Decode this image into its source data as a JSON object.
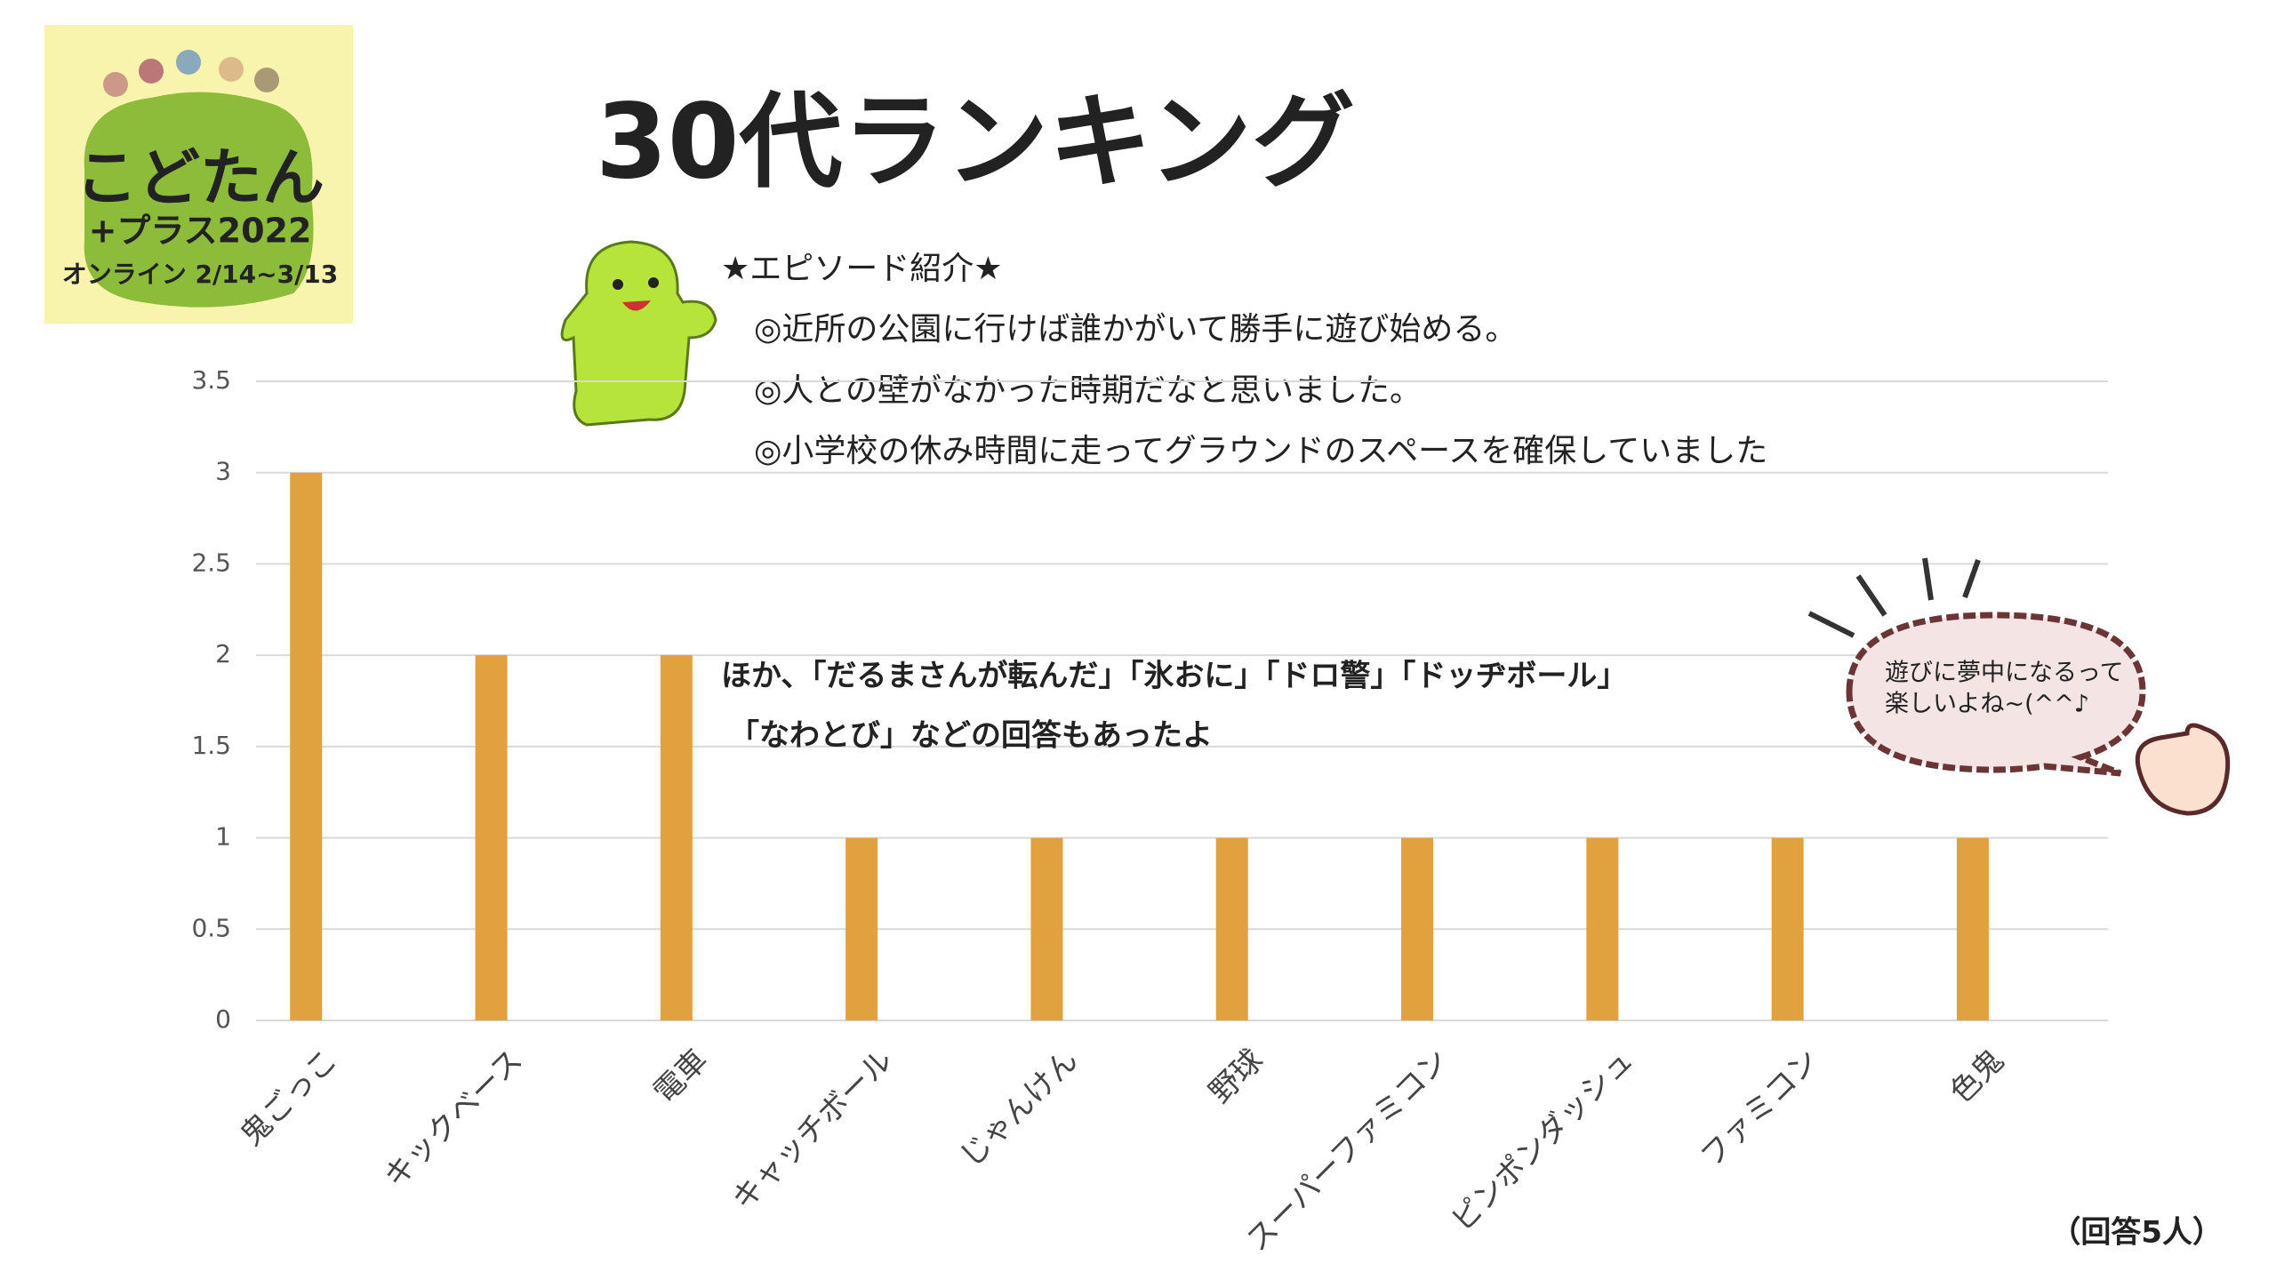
{
  "chart_data": {
    "type": "bar",
    "title": "30代ランキング",
    "categories": [
      "鬼ごっこ",
      "キックベース",
      "電車",
      "キャッチボール",
      "じゃんけん",
      "野球",
      "スーパーファミコン",
      "ピンポンダッシュ",
      "ファミコン",
      "色鬼"
    ],
    "values": [
      3,
      2,
      2,
      1,
      1,
      1,
      1,
      1,
      1,
      1
    ],
    "color": "#e0a13e",
    "ylim": [
      0,
      3.5
    ],
    "yticks": [
      0,
      0.5,
      1,
      1.5,
      2,
      2.5,
      3,
      3.5
    ],
    "grid": true,
    "episode_heading": "★エピソード紹介★",
    "episodes": [
      "◎近所の公園に行けば誰かがいて勝手に遊び始める。",
      "◎人との壁がなかった時期だなと思いました。",
      "◎小学校の休み時間に走ってグラウンドのスペースを確保していました"
    ],
    "comment": [
      "ほか、「だるまさんが転んだ」「氷おに」「ドロ警」「ドッヂボール」",
      "「なわとび」などの回答もあったよ"
    ],
    "bubble": [
      "遊びに夢中になるって",
      "楽しいよね~(^^♪"
    ],
    "footnote": "（回答5人）",
    "logo": [
      "こどたん",
      "+プラス2022",
      "オンライン 2/14~3/13"
    ]
  }
}
